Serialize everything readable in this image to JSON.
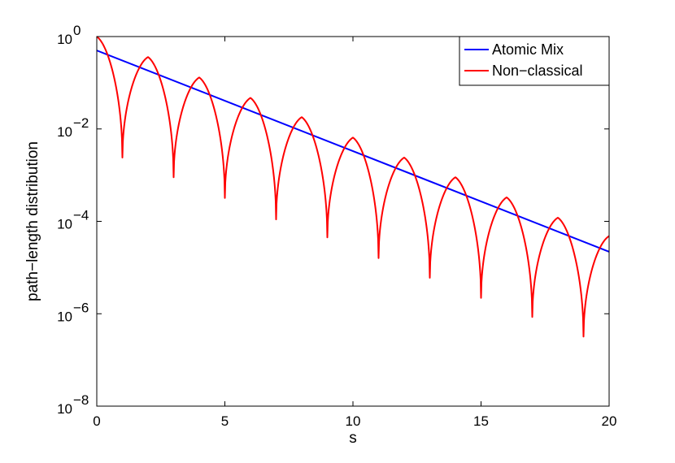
{
  "chart_data": {
    "type": "line",
    "title": "",
    "xlabel": "s",
    "ylabel": "path−length distribution",
    "xlim": [
      0,
      20
    ],
    "ylim": [
      1e-08,
      1
    ],
    "yscale": "log",
    "grid": false,
    "legend_position": "top-right",
    "x_ticks": [
      0,
      5,
      10,
      15,
      20
    ],
    "x_tick_labels": [
      "0",
      "5",
      "10",
      "15",
      "20"
    ],
    "y_ticks": [
      {
        "value": 1,
        "base": "10",
        "exp": "0"
      },
      {
        "value": 0.01,
        "base": "10",
        "exp": "−2"
      },
      {
        "value": 0.0001,
        "base": "10",
        "exp": "−4"
      },
      {
        "value": 1e-06,
        "base": "10",
        "exp": "−6"
      },
      {
        "value": 1e-08,
        "base": "10",
        "exp": "−8"
      }
    ],
    "series": [
      {
        "name": "Atomic Mix",
        "color": "#0000ff",
        "kind": "exponential",
        "x": [
          0,
          20
        ],
        "y": [
          0.5,
          2.2e-05
        ]
      },
      {
        "name": "Non−classical",
        "color": "#ff0000",
        "kind": "cusped",
        "cusps": [
          {
            "x": 0,
            "y": 1.0
          },
          {
            "x": 2,
            "y": 0.36
          },
          {
            "x": 4,
            "y": 0.13
          },
          {
            "x": 6,
            "y": 0.047
          },
          {
            "x": 8,
            "y": 0.018
          },
          {
            "x": 10,
            "y": 0.0065
          },
          {
            "x": 12,
            "y": 0.0024
          },
          {
            "x": 14,
            "y": 0.0009
          },
          {
            "x": 16,
            "y": 0.00033
          },
          {
            "x": 18,
            "y": 0.00012
          },
          {
            "x": 20,
            "y": 4.8e-05
          }
        ],
        "dips": [
          {
            "x": 1,
            "y": 0.0024
          },
          {
            "x": 3,
            "y": 0.0009
          },
          {
            "x": 5,
            "y": 0.00032
          },
          {
            "x": 7,
            "y": 0.00011
          },
          {
            "x": 9,
            "y": 4.5e-05
          },
          {
            "x": 11,
            "y": 1.6e-05
          },
          {
            "x": 13,
            "y": 6e-06
          },
          {
            "x": 15,
            "y": 2.2e-06
          },
          {
            "x": 17,
            "y": 8.5e-07
          },
          {
            "x": 19,
            "y": 3.2e-07
          }
        ]
      }
    ]
  }
}
